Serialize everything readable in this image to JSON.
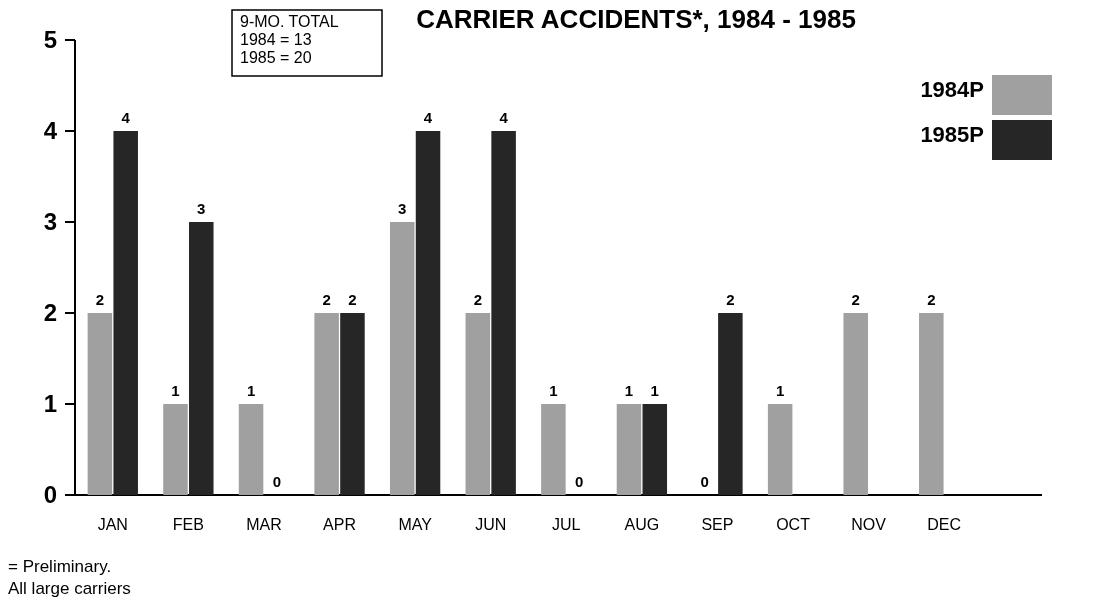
{
  "chart_data": {
    "type": "bar",
    "title": "CARRIER ACCIDENTS*, 1984 - 1985",
    "categories": [
      "JAN",
      "FEB",
      "MAR",
      "APR",
      "MAY",
      "JUN",
      "JUL",
      "AUG",
      "SEP",
      "OCT",
      "NOV",
      "DEC"
    ],
    "series": [
      {
        "name": "1984P",
        "color": "#a0a0a0",
        "values": [
          2,
          1,
          1,
          2,
          3,
          2,
          1,
          1,
          0,
          1,
          2,
          2
        ]
      },
      {
        "name": "1985P",
        "color": "#262626",
        "values": [
          4,
          3,
          0,
          2,
          4,
          4,
          0,
          1,
          2,
          null,
          null,
          null
        ]
      }
    ],
    "ylim": [
      0,
      5
    ],
    "yticks": [
      0,
      1,
      2,
      3,
      4,
      5
    ],
    "data_labels": true,
    "legend": "top right",
    "annotations": [
      "9-MO. TOTAL\n1984 = 13\n1985 = 20",
      "= Preliminary.",
      "All large carriers"
    ]
  }
}
